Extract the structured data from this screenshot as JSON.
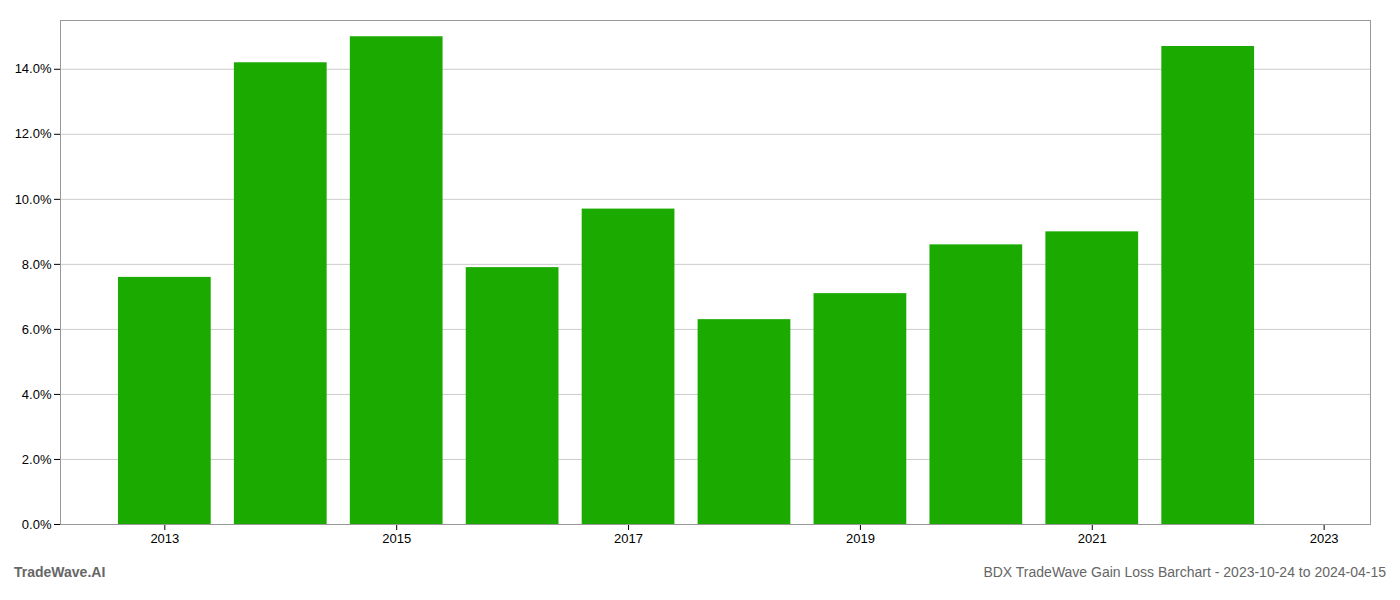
{
  "chart_data": {
    "type": "bar",
    "x": [
      2013,
      2014,
      2015,
      2016,
      2017,
      2018,
      2019,
      2020,
      2021,
      2022
    ],
    "values": [
      0.076,
      0.142,
      0.15,
      0.079,
      0.097,
      0.063,
      0.071,
      0.086,
      0.09,
      0.147
    ],
    "color": "#1aaa00",
    "xlim": [
      2012.1,
      2023.4
    ],
    "xticks": [
      2013,
      2015,
      2017,
      2019,
      2021,
      2023
    ],
    "ylim": [
      0,
      0.155
    ],
    "yticks": [
      {
        "value": 0.0,
        "label": "0.0%"
      },
      {
        "value": 0.02,
        "label": "2.0%"
      },
      {
        "value": 0.04,
        "label": "4.0%"
      },
      {
        "value": 0.06,
        "label": "6.0%"
      },
      {
        "value": 0.08,
        "label": "8.0%"
      },
      {
        "value": 0.1,
        "label": "10.0%"
      },
      {
        "value": 0.12,
        "label": "12.0%"
      },
      {
        "value": 0.14,
        "label": "14.0%"
      }
    ],
    "grid": true,
    "annotations": [
      "TradeWave.AI",
      "BDX TradeWave Gain Loss Barchart - 2023-10-24 to 2024-04-15"
    ]
  }
}
